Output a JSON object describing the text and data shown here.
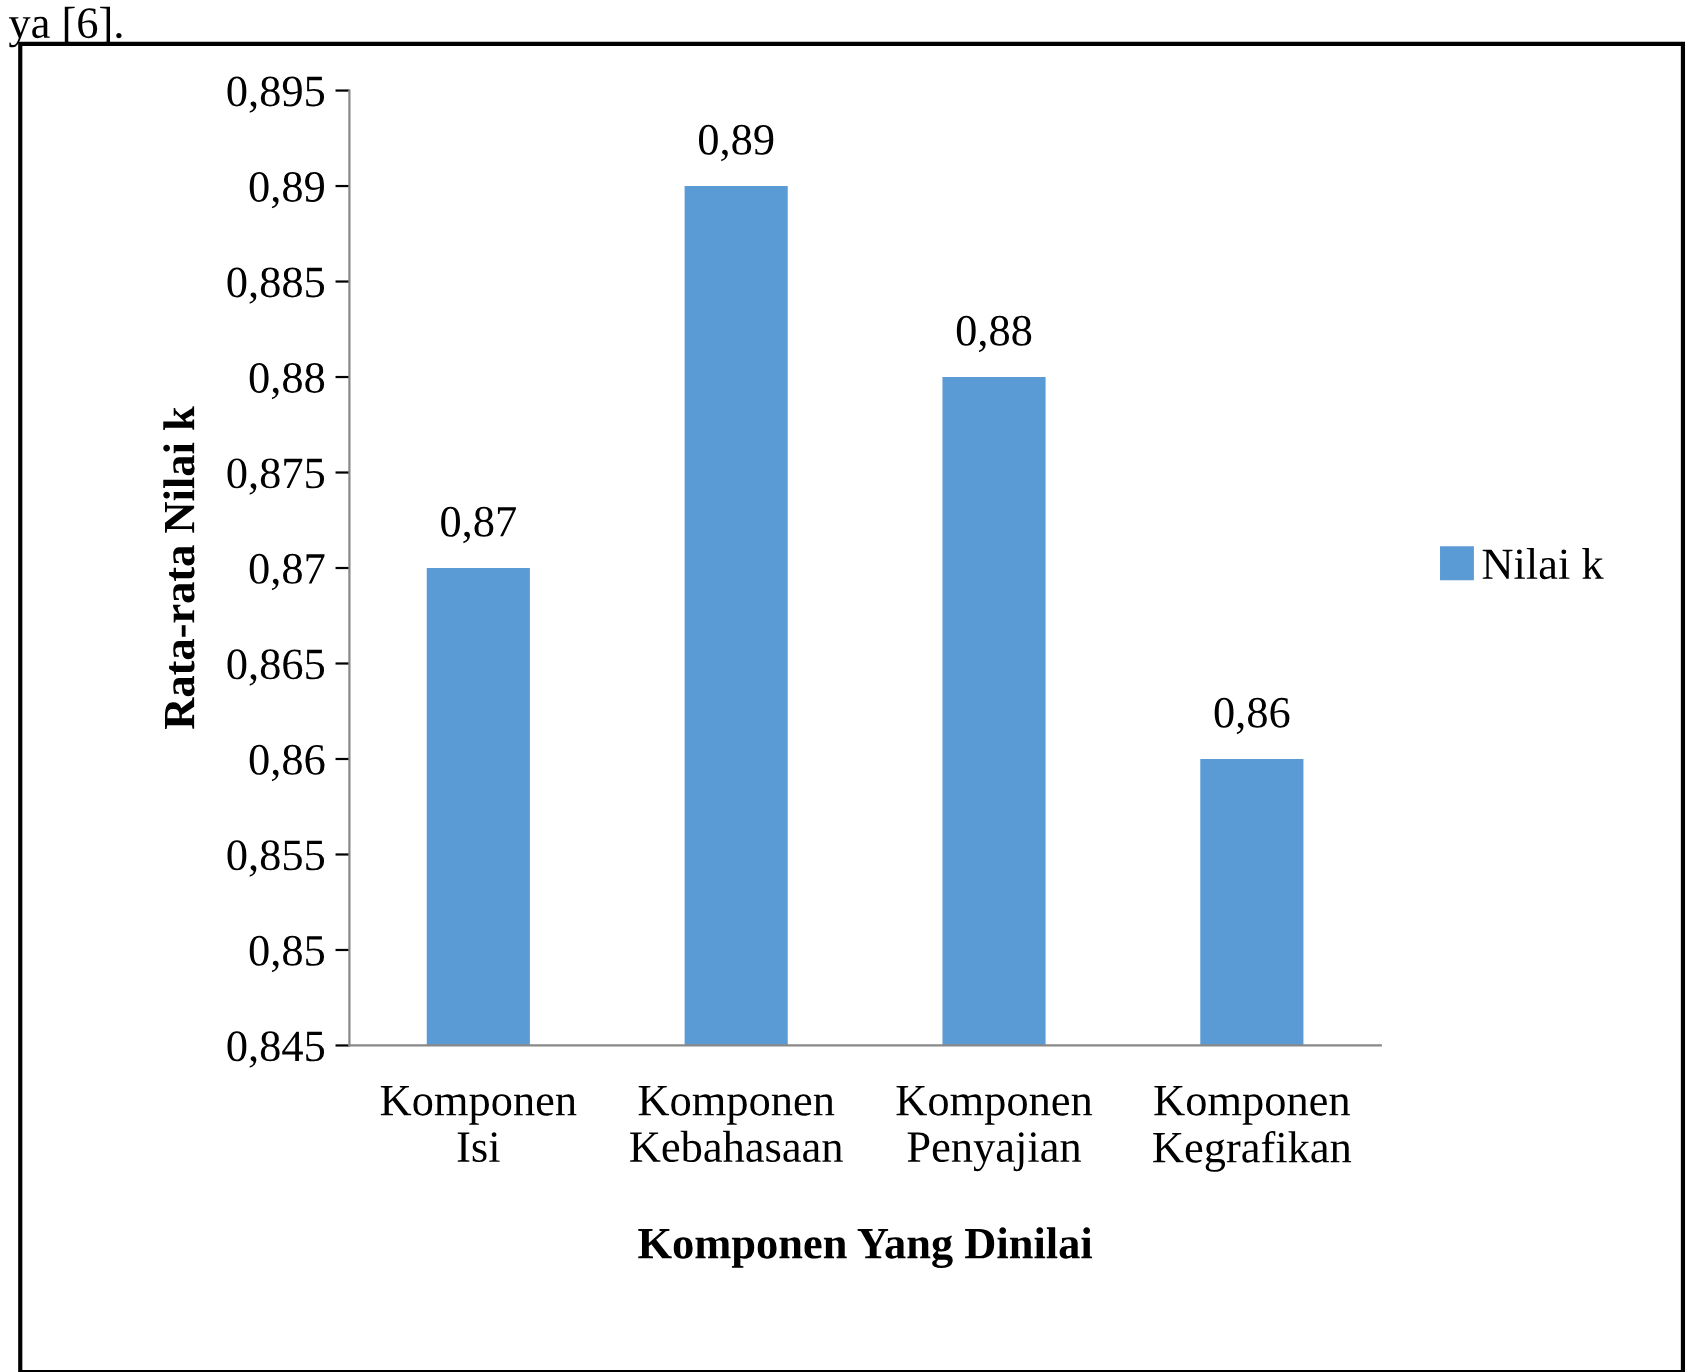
{
  "chart_data": {
    "type": "bar",
    "xlabel": "Komponen Yang Dinilai",
    "ylabel": "Rata-rata Nilai k",
    "annotations": [
      "ya [6]."
    ],
    "categories": [
      "Komponen\nIsi",
      "Komponen\nKebahasaan",
      "Komponen\nPenyajian",
      "Komponen\nKegrafikan"
    ],
    "series": [
      {
        "name": "Nilai k",
        "color": "#5b9bd5",
        "values": [
          0.87,
          0.89,
          0.88,
          0.86
        ],
        "value_labels": [
          "0,87",
          "0,89",
          "0,88",
          "0,86"
        ]
      }
    ],
    "ylim": [
      0.845,
      0.895
    ],
    "yticks": [
      {
        "value": 0.845,
        "label": "0,845"
      },
      {
        "value": 0.85,
        "label": "0,85"
      },
      {
        "value": 0.855,
        "label": "0,855"
      },
      {
        "value": 0.86,
        "label": "0,86"
      },
      {
        "value": 0.865,
        "label": "0,865"
      },
      {
        "value": 0.87,
        "label": "0,87"
      },
      {
        "value": 0.875,
        "label": "0,875"
      },
      {
        "value": 0.88,
        "label": "0,88"
      },
      {
        "value": 0.885,
        "label": "0,885"
      },
      {
        "value": 0.89,
        "label": "0,89"
      },
      {
        "value": 0.895,
        "label": "0,895"
      }
    ],
    "grid": false,
    "legend": "right"
  }
}
